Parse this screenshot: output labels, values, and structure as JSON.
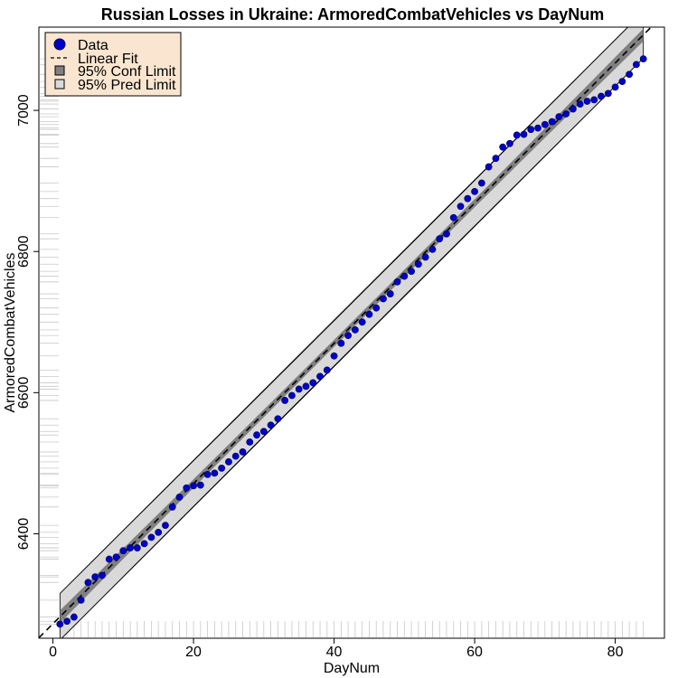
{
  "chart_data": {
    "type": "scatter",
    "title": "Russian Losses in Ukraine: ArmoredCombatVehicles vs DayNum",
    "xlabel": "DayNum",
    "ylabel": "ArmoredCombatVehicles",
    "xlim": [
      -2,
      87
    ],
    "ylim": [
      6252,
      7118
    ],
    "x_ticks": [
      0,
      20,
      40,
      60,
      80
    ],
    "y_ticks": [
      6400,
      6600,
      6800,
      7000
    ],
    "fit": {
      "intercept": 6272.5,
      "slope": 9.934
    },
    "conf_band_halfwidth": [
      5,
      9
    ],
    "pred_band_halfwidth": [
      32,
      33
    ],
    "x": [
      1,
      2,
      3,
      4,
      5,
      6,
      7,
      8,
      9,
      10,
      11,
      12,
      13,
      14,
      15,
      16,
      17,
      18,
      19,
      20,
      21,
      22,
      23,
      24,
      25,
      26,
      27,
      28,
      29,
      30,
      31,
      32,
      33,
      34,
      35,
      36,
      37,
      38,
      39,
      40,
      41,
      42,
      43,
      44,
      45,
      46,
      47,
      48,
      49,
      50,
      51,
      52,
      53,
      54,
      55,
      56,
      57,
      58,
      59,
      60,
      61,
      62,
      63,
      64,
      65,
      66,
      67,
      68,
      69,
      70,
      71,
      72,
      73,
      74,
      75,
      76,
      77,
      78,
      79,
      80,
      81,
      82,
      83,
      84
    ],
    "y": [
      6272,
      6276,
      6282,
      6306,
      6331,
      6339,
      6341,
      6364,
      6367,
      6376,
      6380,
      6380,
      6386,
      6395,
      6402,
      6412,
      6438,
      6452,
      6465,
      6468,
      6469,
      6484,
      6486,
      6493,
      6502,
      6510,
      6516,
      6530,
      6540,
      6545,
      6554,
      6563,
      6589,
      6596,
      6605,
      6609,
      6614,
      6623,
      6632,
      6652,
      6670,
      6681,
      6689,
      6700,
      6711,
      6720,
      6733,
      6740,
      6757,
      6765,
      6772,
      6782,
      6792,
      6803,
      6818,
      6825,
      6848,
      6864,
      6875,
      6885,
      6897,
      6920,
      6932,
      6948,
      6953,
      6965,
      6966,
      6973,
      6975,
      6980,
      6984,
      6991,
      6995,
      7002,
      7009,
      7013,
      7015,
      7020,
      7024,
      7033,
      7041,
      7051,
      7065,
      7073
    ],
    "legend": {
      "position": "top-left",
      "entries": [
        "Data",
        "Linear Fit",
        "95% Conf Limit",
        "95% Pred Limit"
      ]
    },
    "grid": false,
    "colors": {
      "point": "#0000cc",
      "fit_line": "#000000",
      "conf_band": "#808080",
      "pred_band": "#d9d9d9",
      "legend_bg": "#fae6d0",
      "rug": "#c8c8c8"
    }
  }
}
